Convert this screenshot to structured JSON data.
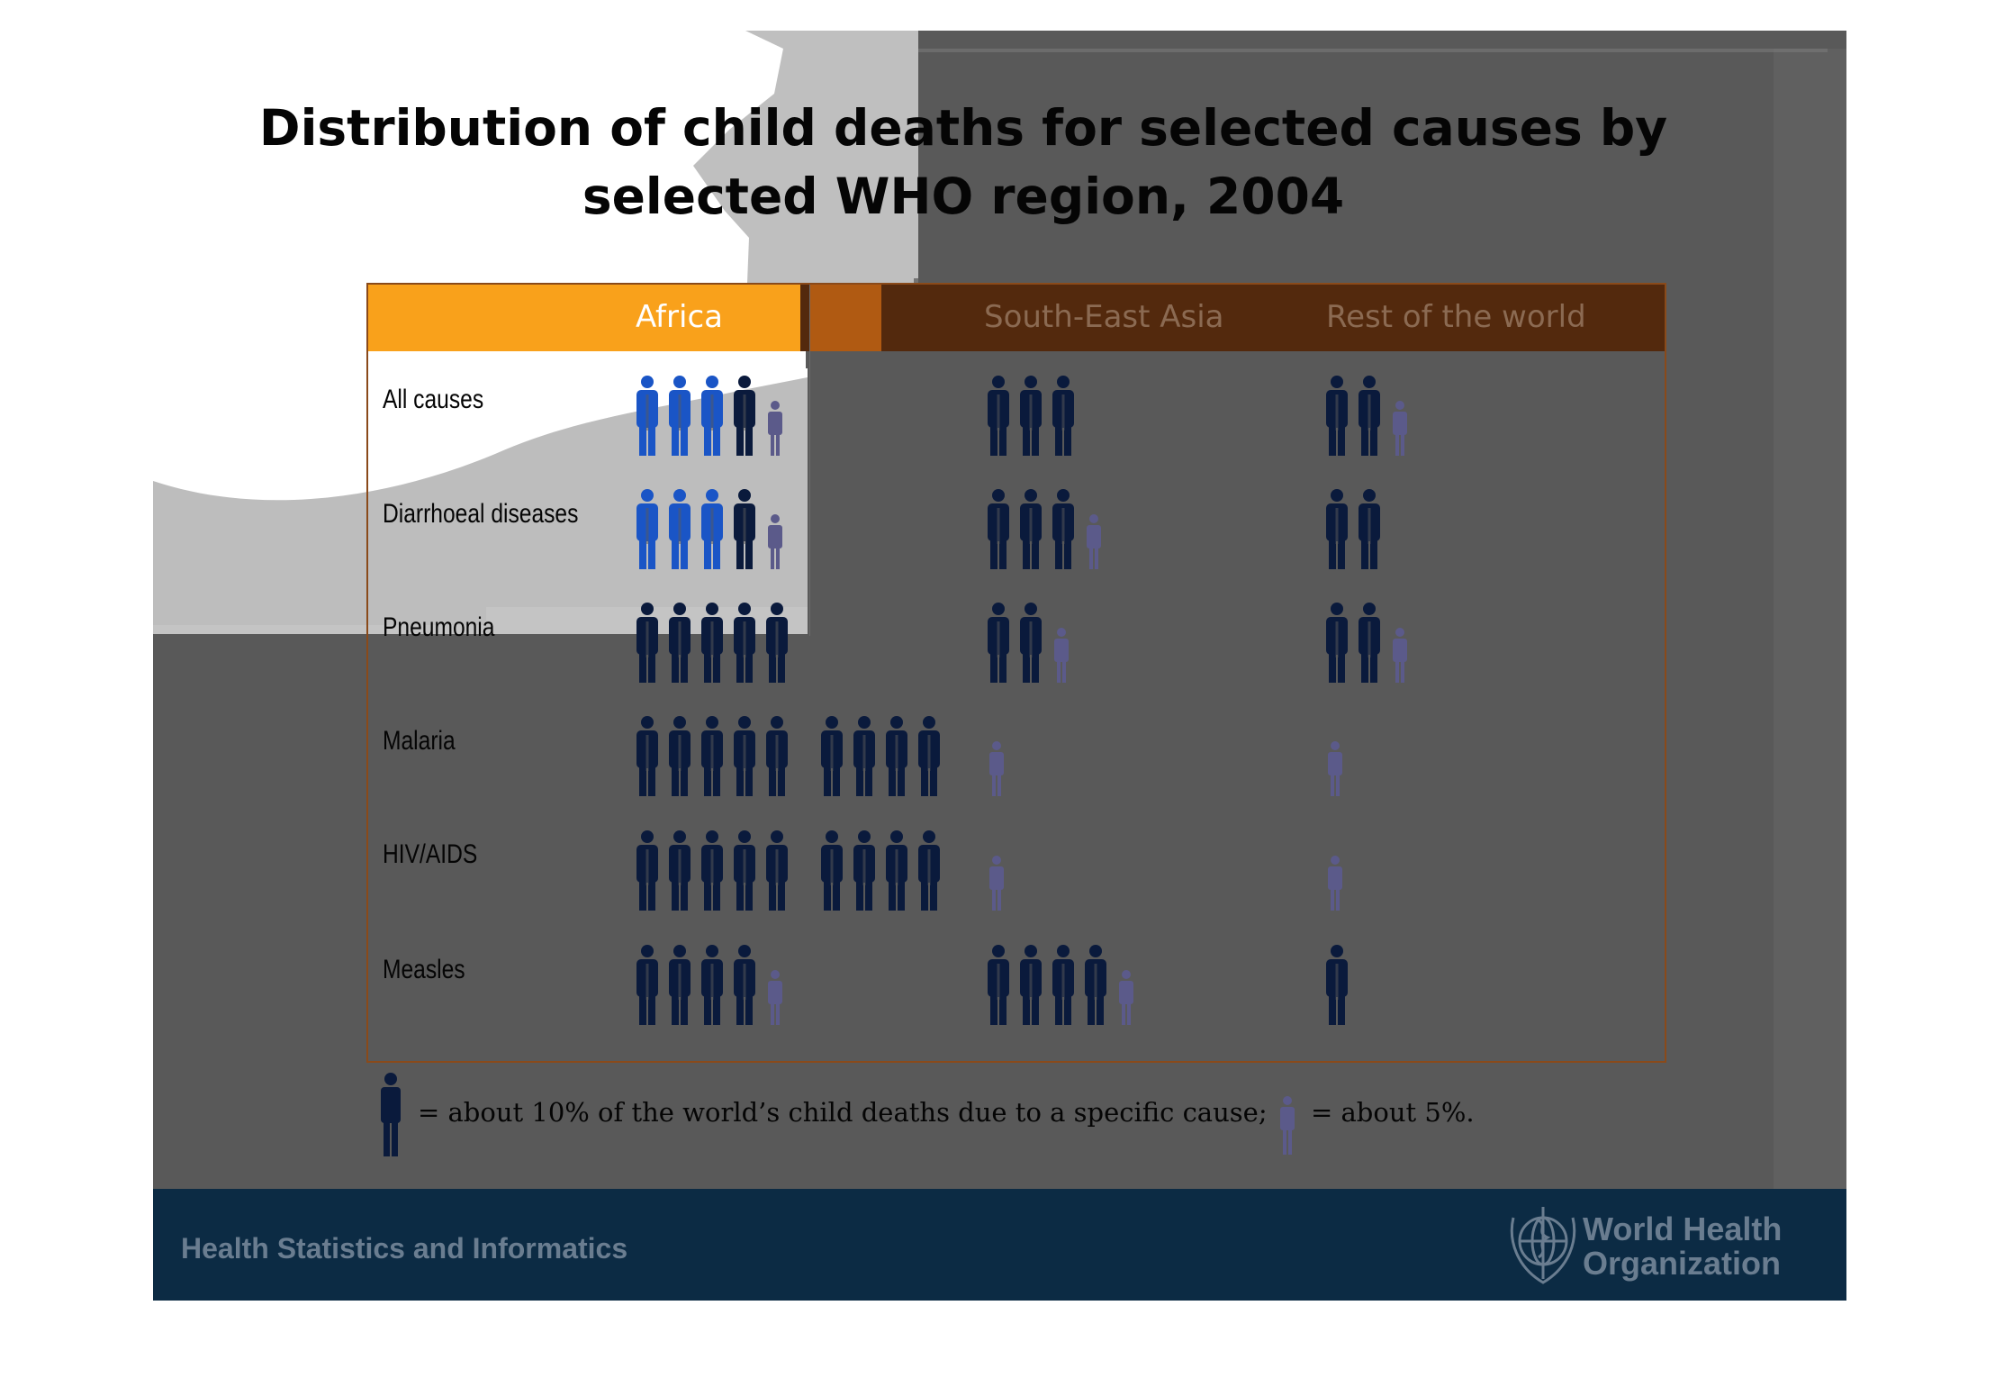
{
  "chart_data": {
    "type": "table",
    "title": "Distribution of child deaths for selected causes by selected WHO region, 2004",
    "title_lines": [
      "Distribution of child deaths for selected causes by",
      "selected WHO region, 2004"
    ],
    "columns": [
      "Africa",
      "South-East Asia",
      "Rest of the world"
    ],
    "rows": [
      "All causes",
      "Diarrhoeal diseases",
      "Pneumonia",
      "Malaria",
      "HIV/AIDS",
      "Measles"
    ],
    "unit": "percent of the world's child deaths due to a specific cause",
    "values": [
      [
        45,
        30,
        25
      ],
      [
        45,
        35,
        20
      ],
      [
        50,
        25,
        25
      ],
      [
        90,
        5,
        5
      ],
      [
        90,
        5,
        5
      ],
      [
        45,
        45,
        10
      ]
    ],
    "legend": {
      "full_icon_text": "= about 10% of the world’s child deaths due to a specific cause;",
      "half_icon_text": "= about 5%."
    }
  },
  "colors": {
    "africa_header": "#f9a11b",
    "header_bar": "#53290d",
    "figure_highlight": "#1a55c6",
    "figure_dark": "#0a1a3c",
    "half_figure": "#5b5a8a",
    "footer": "#0c2b44"
  },
  "footer": {
    "department": "Health Statistics and Informatics",
    "org_line1": "World Health",
    "org_line2": "Organization",
    "logo_icon": "who-emblem-icon"
  }
}
